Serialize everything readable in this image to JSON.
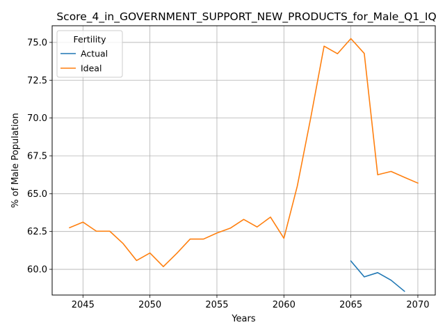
{
  "chart_data": {
    "type": "line",
    "title": "Score_4_in_GOVERNMENT_SUPPORT_NEW_PRODUCTS_for_Male_Q1_IQ",
    "xlabel": "Years",
    "ylabel": "% of Male Population",
    "xlim": [
      2042.7,
      2071.3
    ],
    "ylim": [
      58.3,
      76.1
    ],
    "xticks": [
      2045,
      2050,
      2055,
      2060,
      2065,
      2070
    ],
    "yticks": [
      60.0,
      62.5,
      65.0,
      67.5,
      70.0,
      72.5,
      75.0
    ],
    "grid": true,
    "legend": {
      "title": "Fertility",
      "placement": "top-left"
    },
    "series": [
      {
        "name": "Actual",
        "color": "#1f77b4",
        "x": [
          2065,
          2066,
          2067,
          2068,
          2069
        ],
        "values": [
          60.55,
          59.5,
          59.78,
          59.28,
          58.55
        ]
      },
      {
        "name": "Ideal",
        "color": "#ff7f0e",
        "x": [
          2044,
          2045,
          2046,
          2047,
          2048,
          2049,
          2050,
          2051,
          2052,
          2053,
          2054,
          2055,
          2056,
          2057,
          2058,
          2059,
          2060,
          2061,
          2062,
          2063,
          2064,
          2065,
          2066,
          2067,
          2068,
          2069,
          2070
        ],
        "values": [
          62.75,
          63.12,
          62.52,
          62.52,
          61.7,
          60.58,
          61.08,
          60.18,
          61.05,
          62.0,
          62.0,
          62.4,
          62.72,
          63.3,
          62.8,
          63.45,
          62.05,
          65.5,
          70.0,
          74.75,
          74.25,
          75.25,
          74.27,
          66.25,
          66.47,
          66.08,
          65.7
        ]
      }
    ]
  }
}
